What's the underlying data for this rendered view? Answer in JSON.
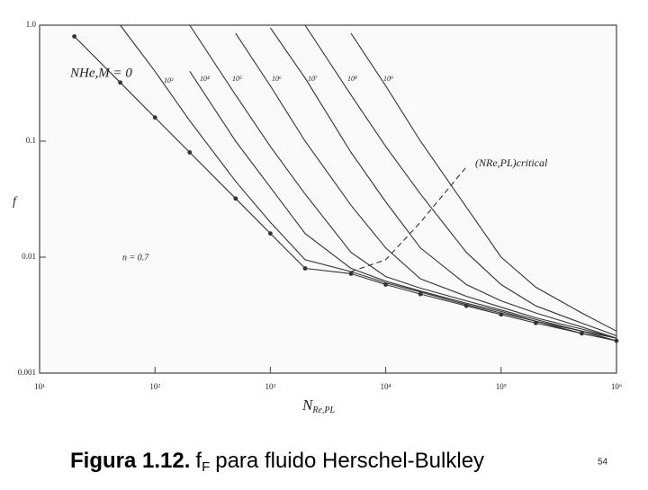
{
  "chart_data": {
    "type": "line",
    "xscale": "log",
    "yscale": "log",
    "xlim": [
      10,
      1000000
    ],
    "ylim": [
      0.001,
      1
    ],
    "xticks": [
      {
        "value": 10,
        "label": "10¹"
      },
      {
        "value": 100,
        "label": "10²"
      },
      {
        "value": 1000,
        "label": "10³"
      },
      {
        "value": 10000,
        "label": "10⁴"
      },
      {
        "value": 100000,
        "label": "10⁵"
      },
      {
        "value": 1000000,
        "label": "10⁶"
      }
    ],
    "yticks": [
      0.001,
      0.01,
      0.1,
      {
        "value": 1,
        "label": "1.0"
      }
    ],
    "y_label": "f",
    "x_label": {
      "main": "N",
      "sub": "Re,PL"
    },
    "annotation": "n = 0.7",
    "x": [
      10,
      20,
      50,
      100,
      200,
      500,
      1000,
      2000,
      5000,
      10000,
      20000,
      50000,
      100000,
      200000,
      500000,
      1000000
    ],
    "series": [
      {
        "name": "NHe,M = 0",
        "color": "#333333",
        "markers": true,
        "values": [
          null,
          0.8,
          0.32,
          0.16,
          0.08,
          0.032,
          0.016,
          0.008,
          0.0072,
          0.0058,
          0.0048,
          0.0038,
          0.0032,
          0.0027,
          0.0022,
          0.0019
        ]
      },
      {
        "name": "10³",
        "color": "#333333",
        "values": [
          null,
          null,
          1.0,
          0.4,
          0.15,
          0.045,
          0.02,
          0.0095,
          0.0075,
          0.006,
          0.005,
          0.0039,
          0.0033,
          0.0028,
          0.0022,
          0.0019
        ]
      },
      {
        "name": "10⁴",
        "color": "#333333",
        "values": [
          null,
          null,
          null,
          null,
          0.4,
          0.1,
          0.04,
          0.016,
          0.008,
          0.0062,
          0.0051,
          0.004,
          0.0034,
          0.0028,
          0.0023,
          0.0019
        ]
      },
      {
        "name": "10⁵",
        "color": "#333333",
        "values": [
          null,
          null,
          null,
          null,
          1.0,
          0.25,
          0.09,
          0.035,
          0.011,
          0.0068,
          0.0054,
          0.0042,
          0.0035,
          0.0029,
          0.0023,
          0.002
        ]
      },
      {
        "name": "10⁶",
        "color": "#333333",
        "values": [
          null,
          null,
          null,
          null,
          null,
          0.85,
          0.3,
          0.1,
          0.028,
          0.012,
          0.0065,
          0.0046,
          0.0037,
          0.003,
          0.0024,
          0.002
        ]
      },
      {
        "name": "10⁷",
        "color": "#333333",
        "values": [
          null,
          null,
          null,
          null,
          null,
          null,
          0.95,
          0.35,
          0.08,
          0.03,
          0.012,
          0.0058,
          0.0042,
          0.0033,
          0.0025,
          0.002
        ]
      },
      {
        "name": "10⁸",
        "color": "#333333",
        "values": [
          null,
          null,
          null,
          null,
          null,
          null,
          null,
          1.0,
          0.25,
          0.09,
          0.035,
          0.011,
          0.0058,
          0.0038,
          0.0027,
          0.0021
        ]
      },
      {
        "name": "10⁹",
        "color": "#333333",
        "values": [
          null,
          null,
          null,
          null,
          null,
          null,
          null,
          null,
          0.85,
          0.3,
          0.1,
          0.027,
          0.01,
          0.0055,
          0.0033,
          0.0023
        ]
      },
      {
        "name": "(NRe,PL)critical",
        "color": "#333333",
        "style": "dashed",
        "values": [
          null,
          null,
          null,
          null,
          null,
          null,
          null,
          null,
          0.0075,
          0.0095,
          0.02,
          0.06,
          null,
          null,
          null,
          null
        ]
      }
    ]
  },
  "caption": {
    "number": "Figura 1.12.",
    "symbol": "f",
    "subscript": "F",
    "text": "para fluido Herschel-Bulkley"
  },
  "page_number": "54"
}
